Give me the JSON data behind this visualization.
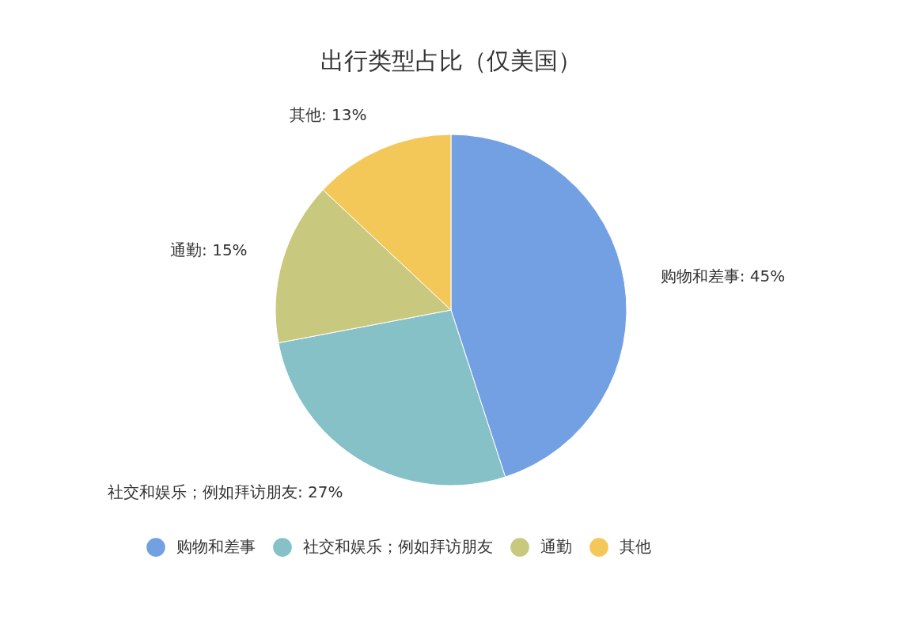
{
  "chart_data": {
    "type": "pie",
    "title": "出行类型占比（仅美国）",
    "categories": [
      "购物和差事",
      "社交和娱乐；例如拜访朋友",
      "通勤",
      "其他"
    ],
    "values": [
      45,
      27,
      15,
      13
    ],
    "value_labels": [
      "购物和差事: 45%",
      "社交和娱乐；例如拜访朋友: 27%",
      "通勤: 15%",
      "其他: 13%"
    ],
    "colors": [
      "#73a0e2",
      "#86c1c8",
      "#c8c87e",
      "#f4c858"
    ],
    "legend": "bottom"
  }
}
